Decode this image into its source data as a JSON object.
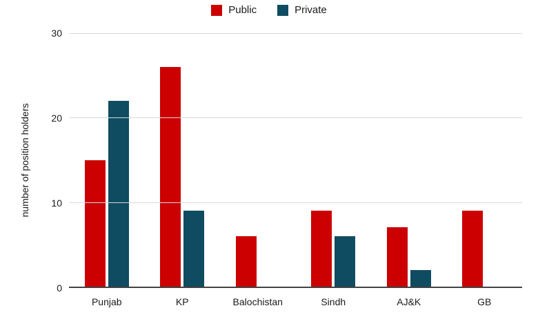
{
  "chart_data": {
    "type": "bar",
    "title": "",
    "categories": [
      "Punjab",
      "KP",
      "Balochistan",
      "Sindh",
      "AJ&K",
      "GB"
    ],
    "series": [
      {
        "name": "Public",
        "color": "#cc0000",
        "values": [
          15,
          26,
          6,
          9,
          7,
          9
        ]
      },
      {
        "name": "Private",
        "color": "#0f4c61",
        "values": [
          22,
          9,
          0,
          6,
          2,
          0
        ]
      }
    ],
    "xlabel": "",
    "ylabel": "number of position holders",
    "ylim": [
      0,
      30
    ],
    "yticks": [
      0,
      10,
      20,
      30
    ],
    "grid": true,
    "legend_position": "top",
    "grid_color": "#d9d9d9",
    "axis_color": "#424242",
    "text_color": "#1a1a1a",
    "background_color": "#ffffff"
  }
}
